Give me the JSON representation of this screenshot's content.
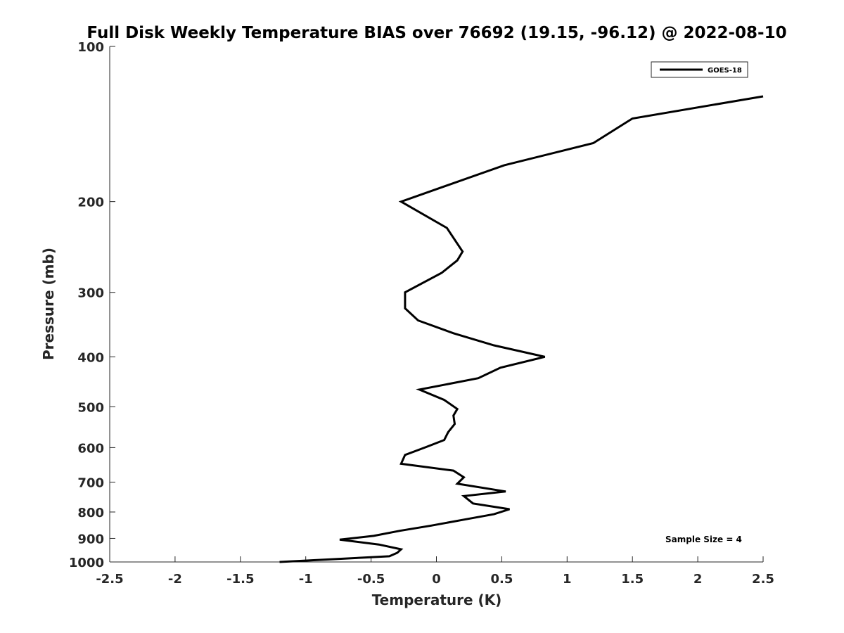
{
  "chart_data": {
    "type": "line",
    "title": "Full Disk Weekly Temperature BIAS over 76692 (19.15, -96.12) @ 2022-08-10",
    "xlabel": "Temperature (K)",
    "ylabel": "Pressure (mb)",
    "xlim": [
      -2.5,
      2.5
    ],
    "ylim": [
      1000,
      100
    ],
    "y_scale": "log",
    "x_ticks": [
      "-2.5",
      "-2",
      "-1.5",
      "-1",
      "-0.5",
      "0",
      "0.5",
      "1",
      "1.5",
      "2",
      "2.5"
    ],
    "y_ticks": [
      "100",
      "200",
      "300",
      "400",
      "500",
      "600",
      "700",
      "800",
      "900",
      "1000"
    ],
    "grid": false,
    "legend": {
      "position": "top-right",
      "entries": [
        "GOES-18"
      ]
    },
    "annotation": "Sample Size = 4",
    "series": [
      {
        "name": "GOES-18",
        "color": "#000000",
        "points": [
          {
            "p": 125,
            "t": 2.5
          },
          {
            "p": 138,
            "t": 1.5
          },
          {
            "p": 154,
            "t": 1.2
          },
          {
            "p": 170,
            "t": 0.52
          },
          {
            "p": 200,
            "t": -0.27
          },
          {
            "p": 225,
            "t": 0.08
          },
          {
            "p": 250,
            "t": 0.2
          },
          {
            "p": 260,
            "t": 0.16
          },
          {
            "p": 275,
            "t": 0.04
          },
          {
            "p": 300,
            "t": -0.24
          },
          {
            "p": 322,
            "t": -0.24
          },
          {
            "p": 340,
            "t": -0.14
          },
          {
            "p": 360,
            "t": 0.13
          },
          {
            "p": 380,
            "t": 0.44
          },
          {
            "p": 400,
            "t": 0.83
          },
          {
            "p": 420,
            "t": 0.49
          },
          {
            "p": 440,
            "t": 0.32
          },
          {
            "p": 463,
            "t": -0.13
          },
          {
            "p": 485,
            "t": 0.06
          },
          {
            "p": 505,
            "t": 0.16
          },
          {
            "p": 520,
            "t": 0.13
          },
          {
            "p": 540,
            "t": 0.14
          },
          {
            "p": 560,
            "t": 0.09
          },
          {
            "p": 580,
            "t": 0.06
          },
          {
            "p": 600,
            "t": -0.09
          },
          {
            "p": 620,
            "t": -0.24
          },
          {
            "p": 645,
            "t": -0.27
          },
          {
            "p": 665,
            "t": 0.13
          },
          {
            "p": 685,
            "t": 0.21
          },
          {
            "p": 705,
            "t": 0.16
          },
          {
            "p": 730,
            "t": 0.53
          },
          {
            "p": 745,
            "t": 0.21
          },
          {
            "p": 770,
            "t": 0.28
          },
          {
            "p": 790,
            "t": 0.56
          },
          {
            "p": 808,
            "t": 0.44
          },
          {
            "p": 825,
            "t": 0.24
          },
          {
            "p": 850,
            "t": -0.04
          },
          {
            "p": 870,
            "t": -0.28
          },
          {
            "p": 890,
            "t": -0.48
          },
          {
            "p": 905,
            "t": -0.74
          },
          {
            "p": 925,
            "t": -0.44
          },
          {
            "p": 945,
            "t": -0.27
          },
          {
            "p": 960,
            "t": -0.3
          },
          {
            "p": 975,
            "t": -0.36
          },
          {
            "p": 1000,
            "t": -1.2
          }
        ]
      }
    ]
  }
}
